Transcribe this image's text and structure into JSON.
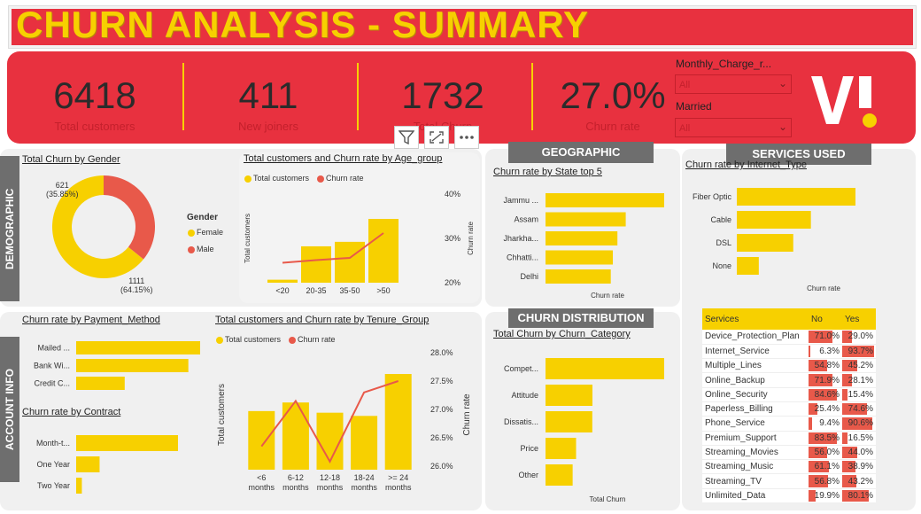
{
  "title": "CHURN ANALYSIS - SUMMARY",
  "kpis": [
    {
      "value": "6418",
      "label": "Total customers"
    },
    {
      "value": "411",
      "label": "New joiners"
    },
    {
      "value": "1732",
      "label": "Total Churn"
    },
    {
      "value": "27.0%",
      "label": "Churn rate"
    }
  ],
  "slicers": [
    {
      "label": "Monthly_Charge_r...",
      "value": "All"
    },
    {
      "label": "Married",
      "value": "All"
    }
  ],
  "logo_text": "VI",
  "sections": {
    "demographic": "DEMOGRAPHIC",
    "account": "ACCOUNT INFO",
    "geographic": "GEOGRAPHIC",
    "services": "SERVICES USED",
    "churn_dist": "CHURN DISTRIBUTION"
  },
  "colors": {
    "red": "#e8313f",
    "yellow": "#f7d000",
    "line": "#e8594a",
    "gray": "#6e6e6e"
  },
  "icons": [
    "filter-icon",
    "focus-mode-icon",
    "more-options-icon"
  ],
  "chart_data": [
    {
      "id": "gender",
      "type": "pie",
      "title": "Total Churn by Gender",
      "legend_title": "Gender",
      "slices": [
        {
          "name": "Female",
          "value": 1111,
          "label": "1111",
          "pct": "(64.15%)"
        },
        {
          "name": "Male",
          "value": 621,
          "label": "621",
          "pct": "(35.85%)"
        }
      ]
    },
    {
      "id": "age",
      "type": "bar",
      "title": "Total customers and Churn rate by Age_group",
      "categories": [
        "<20",
        "20-35",
        "35-50",
        ">50"
      ],
      "series": [
        {
          "name": "Total customers",
          "values": [
            60,
            730,
            820,
            1280
          ]
        },
        {
          "name": "Churn rate",
          "values": [
            24.5,
            25.1,
            25.6,
            31.2
          ]
        }
      ],
      "ylabel": "Total customers",
      "y2label": "Churn rate",
      "y2ticks": [
        "20%",
        "30%",
        "40%"
      ],
      "y2lim": [
        20,
        40
      ]
    },
    {
      "id": "state",
      "type": "bar",
      "title": "Churn rate by State top 5",
      "categories": [
        "Jammu ...",
        "Assam",
        "Jharkha...",
        "Chhatti...",
        "Delhi"
      ],
      "values": [
        57.1,
        38.6,
        34.6,
        32.4,
        31.4
      ],
      "xlabel": "Churn rate"
    },
    {
      "id": "internet",
      "type": "bar",
      "title": "Churn rate by Internet_Type",
      "categories": [
        "Fiber Optic",
        "Cable",
        "DSL",
        "None"
      ],
      "values": [
        41.0,
        25.6,
        19.5,
        7.6
      ],
      "xlabel": "Churn rate"
    },
    {
      "id": "payment",
      "type": "bar",
      "title": "Churn rate by Payment_Method",
      "categories": [
        "Mailed ...",
        "Bank Wi...",
        "Credit C..."
      ],
      "values": [
        37.8,
        34.2,
        14.8
      ]
    },
    {
      "id": "contract",
      "type": "bar",
      "title": "Churn rate by Contract",
      "categories": [
        "Month-t...",
        "One Year",
        "Two Year"
      ],
      "values": [
        46.5,
        10.7,
        2.6
      ]
    },
    {
      "id": "tenure",
      "type": "bar",
      "title": "Total customers and Churn rate by Tenure_Group",
      "categories": [
        "<6 months",
        "6-12 months",
        "12-18 months",
        "18-24 months",
        ">= 24 months"
      ],
      "category_lines": [
        [
          "<6",
          "months"
        ],
        [
          "6-12",
          "months"
        ],
        [
          "12-18",
          "months"
        ],
        [
          "18-24",
          "months"
        ],
        [
          ">= 24",
          "months"
        ]
      ],
      "series": [
        {
          "name": "Total customers",
          "values": [
            1090,
            1250,
            1060,
            1000,
            1780
          ]
        },
        {
          "name": "Churn rate",
          "values": [
            26.35,
            27.15,
            26.08,
            27.3,
            27.5
          ]
        }
      ],
      "ylabel": "Total customers",
      "y2label": "Churn rate",
      "y2ticks": [
        "26.0%",
        "26.5%",
        "27.0%",
        "27.5%",
        "28.0%"
      ],
      "y2lim": [
        26.0,
        28.0
      ]
    },
    {
      "id": "category",
      "type": "bar",
      "title": "Total Churn by Churn_Category",
      "categories": [
        "Compet...",
        "Attitude",
        "Dissatis...",
        "Price",
        "Other"
      ],
      "values": [
        761,
        301,
        300,
        196,
        174
      ],
      "xlabel": "Total Churn"
    },
    {
      "id": "services",
      "type": "table",
      "columns": [
        "Services",
        "No",
        "Yes"
      ],
      "rows": [
        {
          "name": "Device_Protection_Plan",
          "no": "71.0%",
          "yes": "29.0%"
        },
        {
          "name": "Internet_Service",
          "no": "6.3%",
          "yes": "93.7%"
        },
        {
          "name": "Multiple_Lines",
          "no": "54.8%",
          "yes": "45.2%"
        },
        {
          "name": "Online_Backup",
          "no": "71.9%",
          "yes": "28.1%"
        },
        {
          "name": "Online_Security",
          "no": "84.6%",
          "yes": "15.4%"
        },
        {
          "name": "Paperless_Billing",
          "no": "25.4%",
          "yes": "74.6%"
        },
        {
          "name": "Phone_Service",
          "no": "9.4%",
          "yes": "90.6%"
        },
        {
          "name": "Premium_Support",
          "no": "83.5%",
          "yes": "16.5%"
        },
        {
          "name": "Streaming_Movies",
          "no": "56.0%",
          "yes": "44.0%"
        },
        {
          "name": "Streaming_Music",
          "no": "61.1%",
          "yes": "38.9%"
        },
        {
          "name": "Streaming_TV",
          "no": "56.8%",
          "yes": "43.2%"
        },
        {
          "name": "Unlimited_Data",
          "no": "19.9%",
          "yes": "80.1%"
        }
      ]
    }
  ]
}
